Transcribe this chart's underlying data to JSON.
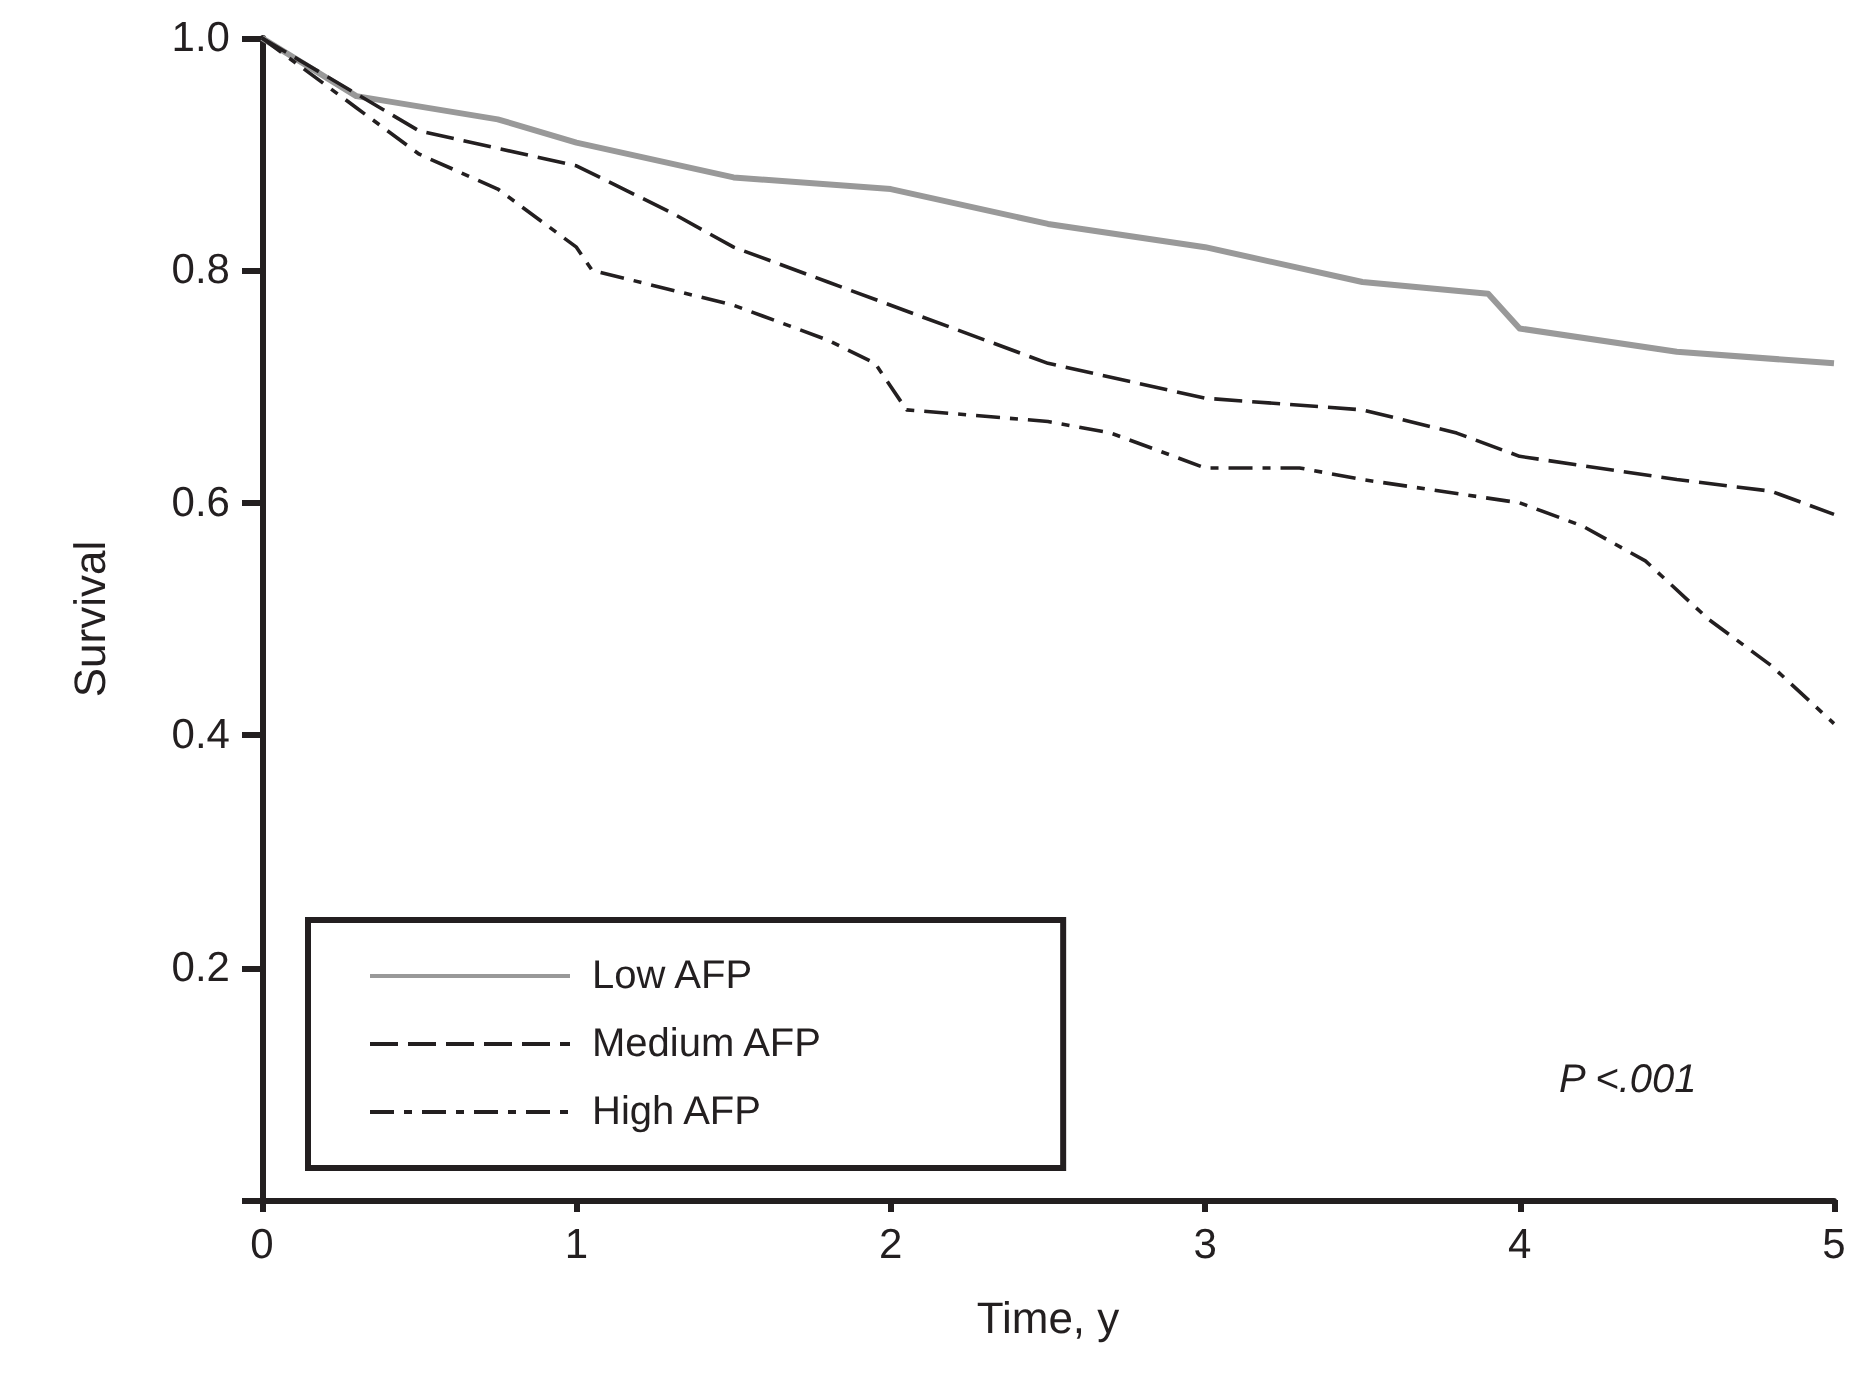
{
  "chart_data": {
    "type": "line",
    "xlabel": "Time, y",
    "ylabel": "Survival",
    "xlim": [
      0,
      5
    ],
    "ylim": [
      0,
      1
    ],
    "xticks": [
      0,
      1,
      2,
      3,
      4,
      5
    ],
    "yticks": [
      {
        "value": 0,
        "label": null
      },
      0.2,
      0.4,
      0.6,
      0.8,
      {
        "value": 1,
        "label": "1.0"
      }
    ],
    "grid": false,
    "legend": "bottom left",
    "marker": "none",
    "annotations": [
      "P <.001"
    ],
    "series": [
      {
        "name": "Low AFP",
        "color": "#999999",
        "line_style": "solid",
        "x": [
          0,
          0.3,
          0.75,
          1.0,
          1.5,
          2.0,
          2.5,
          3.0,
          3.5,
          3.9,
          4.0,
          4.5,
          5.0
        ],
        "values": [
          1.0,
          0.95,
          0.93,
          0.91,
          0.88,
          0.87,
          0.84,
          0.82,
          0.79,
          0.78,
          0.75,
          0.73,
          0.72
        ]
      },
      {
        "name": "Medium AFP",
        "color": "#231f20",
        "line_style": "dashed",
        "x": [
          0,
          0.5,
          1.0,
          1.3,
          1.5,
          1.8,
          2.0,
          2.5,
          3.0,
          3.5,
          3.8,
          4.0,
          4.5,
          4.8,
          5.0
        ],
        "values": [
          1.0,
          0.92,
          0.89,
          0.85,
          0.82,
          0.79,
          0.77,
          0.72,
          0.69,
          0.68,
          0.66,
          0.64,
          0.62,
          0.61,
          0.59
        ]
      },
      {
        "name": "High AFP",
        "color": "#231f20",
        "line_style": "dashdot",
        "x": [
          0,
          0.3,
          0.5,
          0.75,
          1.0,
          1.05,
          1.5,
          1.8,
          1.95,
          2.05,
          2.5,
          2.7,
          3.0,
          3.3,
          3.5,
          4.0,
          4.2,
          4.4,
          4.6,
          4.8,
          5.0
        ],
        "values": [
          1.0,
          0.94,
          0.9,
          0.87,
          0.82,
          0.8,
          0.77,
          0.74,
          0.72,
          0.68,
          0.67,
          0.66,
          0.63,
          0.63,
          0.62,
          0.6,
          0.58,
          0.55,
          0.5,
          0.46,
          0.41
        ]
      }
    ]
  }
}
